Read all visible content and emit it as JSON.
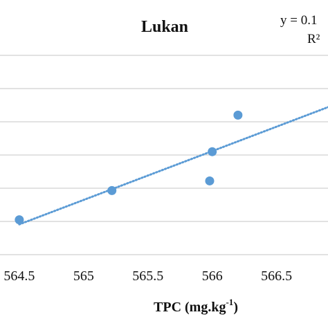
{
  "chart_data": {
    "type": "scatter",
    "title": "Lukan",
    "xlabel": "TPC (mg.kg",
    "xlabel_superscript": "-1",
    "xlabel_suffix": ")",
    "ylabel": "",
    "x_ticks": [
      "564.5",
      "565",
      "565.5",
      "566",
      "566.5"
    ],
    "xlim": [
      564.35,
      566.9
    ],
    "ylim": [
      0,
      6
    ],
    "grid": true,
    "trendline": {
      "type": "linear",
      "style": "dotted",
      "equation_label": "y = 0.1",
      "r2_label": "R²",
      "x_range": [
        564.5,
        566.9
      ]
    },
    "series": [
      {
        "color": "#5b9bd5",
        "points": [
          {
            "x": 564.5,
            "y": 1.05
          },
          {
            "x": 565.22,
            "y": 1.93
          },
          {
            "x": 565.98,
            "y": 2.22
          },
          {
            "x": 566.0,
            "y": 3.1
          },
          {
            "x": 566.2,
            "y": 4.2
          }
        ]
      }
    ]
  }
}
